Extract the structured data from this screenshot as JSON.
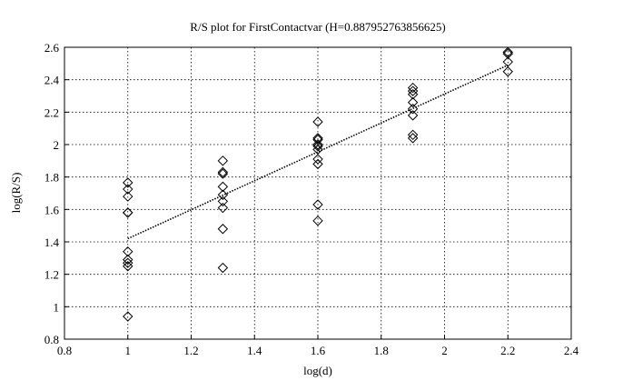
{
  "chart_data": {
    "type": "scatter",
    "title": "R/S plot for FirstContactvar (H=0.887952763856625)",
    "x_label": "log(d)",
    "y_label": "log(R/S)",
    "xlim": [
      0.8,
      2.4
    ],
    "ylim": [
      0.8,
      2.6
    ],
    "xticks": [
      0.8,
      1,
      1.2,
      1.4,
      1.6,
      1.8,
      2,
      2.2,
      2.4
    ],
    "yticks": [
      0.8,
      1,
      1.2,
      1.4,
      1.6,
      1.8,
      2,
      2.2,
      2.4,
      2.6
    ],
    "grid": true,
    "marker": "diamond",
    "color": "#000000",
    "points": {
      "x": [
        1,
        1,
        1,
        1,
        1,
        1,
        1,
        1,
        1,
        1,
        1.3,
        1.3,
        1.3,
        1.3,
        1.3,
        1.3,
        1.3,
        1.3,
        1.3,
        1.6,
        1.6,
        1.6,
        1.6,
        1.6,
        1.6,
        1.6,
        1.6,
        1.6,
        1.6,
        1.9,
        1.9,
        1.9,
        1.9,
        1.9,
        1.9,
        1.9,
        1.9,
        2.2,
        2.2,
        2.2,
        2.2
      ],
      "y": [
        1.765,
        1.725,
        1.68,
        1.58,
        1.58,
        1.34,
        1.29,
        1.27,
        1.25,
        0.94,
        1.9,
        1.83,
        1.82,
        1.74,
        1.69,
        1.65,
        1.61,
        1.48,
        1.24,
        2.14,
        2.04,
        2.03,
        2,
        1.99,
        1.97,
        1.91,
        1.88,
        1.63,
        1.53,
        2.35,
        2.33,
        2.31,
        2.26,
        2.22,
        2.18,
        2.06,
        2.04,
        2.57,
        2.56,
        2.51,
        2.45
      ]
    },
    "fit": {
      "x": [
        1,
        2.2
      ],
      "y": [
        1.42,
        2.49
      ],
      "style": "dotted"
    }
  }
}
